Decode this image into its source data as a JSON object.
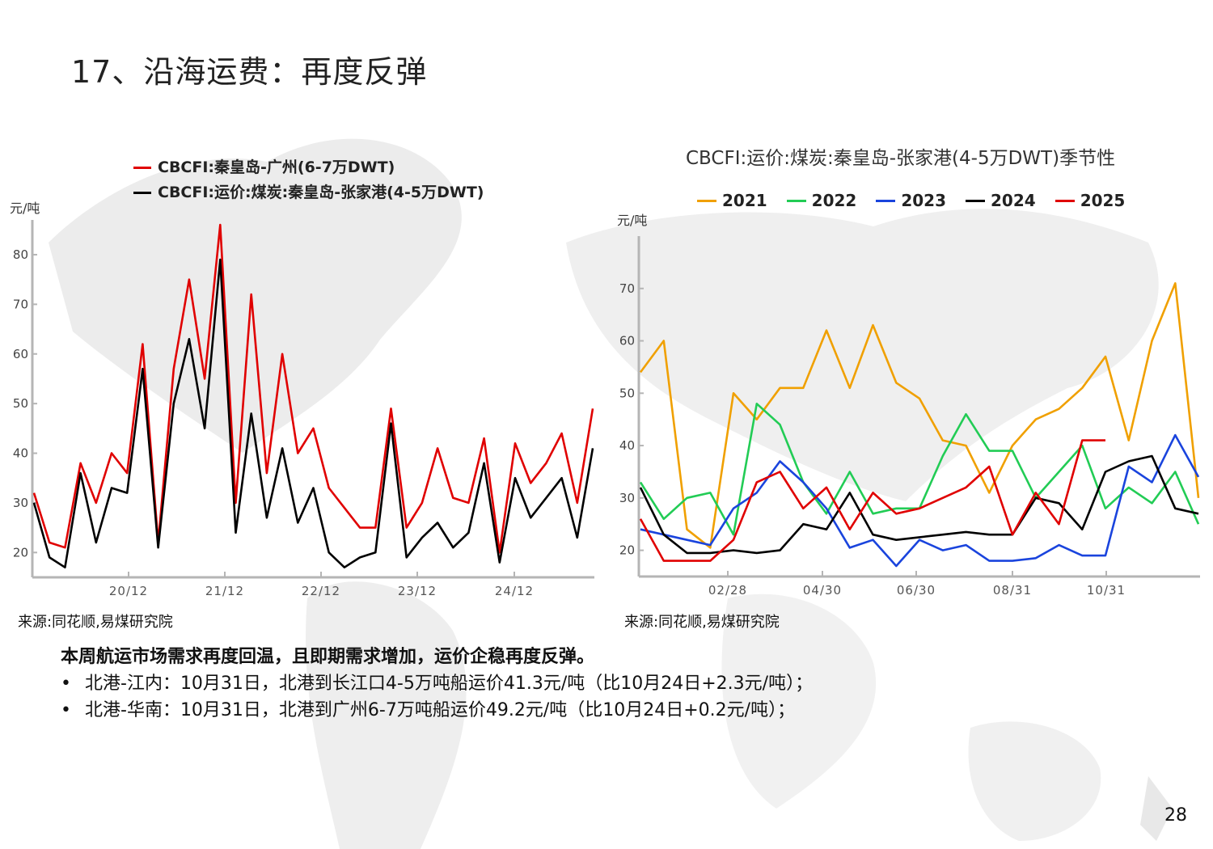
{
  "page": {
    "title": "17、沿海运费：再度反弹",
    "page_number": "28"
  },
  "left_chart": {
    "legend": [
      {
        "label": "CBCFI:秦皇岛-广州(6-7万DWT)",
        "color": "#e00000"
      },
      {
        "label": "CBCFI:运价:煤炭:秦皇岛-张家港(4-5万DWT)",
        "color": "#000000"
      }
    ],
    "unit": "元/吨",
    "source": "来源:同花顺,易煤研究院"
  },
  "right_chart": {
    "title": "CBCFI:运价:煤炭:秦皇岛-张家港(4-5万DWT)季节性",
    "legend": [
      {
        "label": "2021",
        "color": "#f0a000"
      },
      {
        "label": "2022",
        "color": "#22cc55"
      },
      {
        "label": "2023",
        "color": "#1a44dd"
      },
      {
        "label": "2024",
        "color": "#000000"
      },
      {
        "label": "2025",
        "color": "#e00000"
      }
    ],
    "unit": "元/吨",
    "source": "来源:同花顺,易煤研究院"
  },
  "summary": {
    "headline": "本周航运市场需求再度回温，且即期需求增加，运价企稳再度反弹。",
    "bullets": [
      "北港-江内：10月31日，北港到长江口4-5万吨船运价41.3元/吨（比10月24日+2.3元/吨）；",
      "北港-华南：10月31日，北港到广州6-7万吨船运价49.2元/吨（比10月24日+0.2元/吨）；"
    ],
    "bullet_glyph": "•"
  },
  "chart_data": [
    {
      "type": "line",
      "title": "",
      "xlabel": "",
      "ylabel": "元/吨",
      "ylim": [
        15,
        87
      ],
      "yticks": [
        20,
        30,
        40,
        50,
        60,
        70,
        80
      ],
      "x_tick_labels": [
        "20/12",
        "21/12",
        "22/12",
        "23/12",
        "24/12"
      ],
      "x": [
        "2019/12",
        "2020/03",
        "2020/06",
        "2020/09",
        "2020/11",
        "2020/12",
        "2021/01",
        "2021/03",
        "2021/05",
        "2021/07",
        "2021/09",
        "2021/10",
        "2021/12",
        "2022/02",
        "2022/04",
        "2022/06",
        "2022/08",
        "2022/10",
        "2022/12",
        "2023/02",
        "2023/04",
        "2023/06",
        "2023/08",
        "2023/10",
        "2023/12",
        "2024/02",
        "2024/04",
        "2024/06",
        "2024/08",
        "2024/10",
        "2024/12",
        "2025/02",
        "2025/04",
        "2025/06",
        "2025/08",
        "2025/09",
        "2025/10"
      ],
      "series": [
        {
          "name": "CBCFI:秦皇岛-广州(6-7万DWT)",
          "color": "#e00000",
          "values": [
            32,
            22,
            21,
            38,
            30,
            40,
            36,
            62,
            22,
            57,
            75,
            55,
            86,
            30,
            72,
            36,
            60,
            40,
            45,
            33,
            29,
            25,
            25,
            49,
            25,
            30,
            41,
            31,
            30,
            43,
            20,
            42,
            34,
            38,
            44,
            30,
            49
          ]
        },
        {
          "name": "CBCFI:运价:煤炭:秦皇岛-张家港(4-5万DWT)",
          "color": "#000000",
          "values": [
            30,
            19,
            17,
            36,
            22,
            33,
            32,
            57,
            21,
            50,
            63,
            45,
            79,
            24,
            48,
            27,
            41,
            26,
            33,
            20,
            17,
            19,
            20,
            46,
            19,
            23,
            26,
            21,
            24,
            38,
            18,
            35,
            27,
            31,
            35,
            23,
            41
          ]
        }
      ]
    },
    {
      "type": "line",
      "title": "CBCFI:运价:煤炭:秦皇岛-张家港(4-5万DWT)季节性",
      "xlabel": "",
      "ylabel": "元/吨",
      "ylim": [
        15,
        80
      ],
      "yticks": [
        20,
        30,
        40,
        50,
        60,
        70
      ],
      "x_tick_labels": [
        "02/28",
        "04/30",
        "06/30",
        "08/31",
        "10/31"
      ],
      "x": [
        "01/01",
        "01/20",
        "02/05",
        "02/20",
        "03/05",
        "03/20",
        "04/05",
        "04/20",
        "05/05",
        "05/20",
        "06/05",
        "06/20",
        "07/05",
        "07/20",
        "08/05",
        "08/20",
        "09/05",
        "09/20",
        "10/05",
        "10/20",
        "11/05",
        "11/20",
        "12/05",
        "12/20",
        "12/31"
      ],
      "series": [
        {
          "name": "2021",
          "color": "#f0a000",
          "values": [
            54,
            60,
            24,
            20.5,
            50,
            45,
            51,
            51,
            62,
            51,
            63,
            52,
            49,
            41,
            40,
            31,
            40,
            45,
            47,
            51,
            57,
            41,
            60,
            71,
            30
          ]
        },
        {
          "name": "2022",
          "color": "#22cc55",
          "values": [
            33,
            26,
            30,
            31,
            23,
            48,
            44,
            33,
            27,
            35,
            27,
            28,
            28,
            38,
            46,
            39,
            39,
            30,
            35,
            40,
            28,
            32,
            29,
            35,
            25
          ]
        },
        {
          "name": "2023",
          "color": "#1a44dd",
          "values": [
            24,
            23,
            22,
            21,
            28,
            31,
            37,
            33,
            28,
            20.5,
            22,
            17,
            22,
            20,
            21,
            18,
            18,
            18.5,
            21,
            19,
            19,
            36,
            33,
            42,
            34
          ]
        },
        {
          "name": "2024",
          "color": "#000000",
          "values": [
            32,
            23,
            19.5,
            19.5,
            20,
            19.5,
            20,
            25,
            24,
            31,
            23,
            22,
            22.5,
            23,
            23.5,
            23,
            23,
            30,
            29,
            24,
            35,
            37,
            38,
            28,
            27
          ]
        },
        {
          "name": "2025",
          "color": "#e00000",
          "values": [
            26,
            18,
            18,
            18,
            22,
            33,
            35,
            28,
            32,
            24,
            31,
            27,
            28,
            30,
            32,
            36,
            23,
            31,
            25,
            41,
            41
          ]
        }
      ]
    }
  ]
}
